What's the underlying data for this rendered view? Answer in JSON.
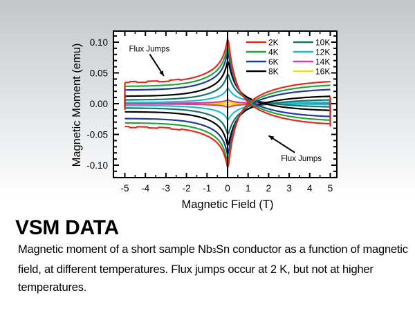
{
  "page": {
    "title": "VSM DATA",
    "caption_pre": "Magnetic moment of a short sample Nb",
    "caption_sub": "3",
    "caption_post": "Sn conductor as a function of magnetic field, at different temperatures. Flux jumps occur at 2 K, but not at higher temperatures."
  },
  "chart_data": {
    "type": "line",
    "title": "",
    "xlabel": "Magnetic Field (T)",
    "ylabel": "Magnetic Moment (emu)",
    "xlim": [
      -5.5,
      5.3
    ],
    "ylim": [
      -0.122,
      0.118
    ],
    "xticks": [
      "-5",
      "-4",
      "-3",
      "-2",
      "-1",
      "0",
      "1",
      "2",
      "3",
      "4",
      "5"
    ],
    "yticks": [
      "0.10",
      "0.05",
      "0.00",
      "-0.05",
      "-0.10"
    ],
    "grid": false,
    "legend_position": "upper right",
    "annotations": [
      {
        "text": "Flux Jumps",
        "xy": [
          -3.1,
          0.045
        ],
        "text_pos": [
          -4.8,
          0.085
        ]
      },
      {
        "text": "Flux Jumps",
        "xy": [
          2.0,
          -0.052
        ],
        "text_pos": [
          2.6,
          -0.093
        ]
      }
    ],
    "series": [
      {
        "name": "2K",
        "color": "#e8281e",
        "upper_peak": 0.109,
        "upper_end": 0.034,
        "lower_peak": -0.108,
        "lower_end": -0.037,
        "flux_jumps": true
      },
      {
        "name": "4K",
        "color": "#1fa83a",
        "upper_peak": 0.098,
        "upper_end": 0.028,
        "lower_peak": -0.1,
        "lower_end": -0.031
      },
      {
        "name": "6K",
        "color": "#1f3a9a",
        "upper_peak": 0.087,
        "upper_end": 0.022,
        "lower_peak": -0.086,
        "lower_end": -0.024
      },
      {
        "name": "8K",
        "color": "#000000",
        "upper_peak": 0.072,
        "upper_end": 0.012,
        "lower_peak": -0.071,
        "lower_end": -0.013
      },
      {
        "name": "10K",
        "color": "#14766e",
        "upper_peak": 0.05,
        "upper_end": 0.006,
        "lower_peak": -0.052,
        "lower_end": -0.007
      },
      {
        "name": "12K",
        "color": "#21bcd0",
        "upper_peak": 0.026,
        "upper_end": 0.002,
        "lower_peak": -0.027,
        "lower_end": -0.003
      },
      {
        "name": "14K",
        "color": "#d63b9e",
        "upper_peak": 0.006,
        "upper_end": 0.0005,
        "lower_peak": -0.006,
        "lower_end": -0.0005
      },
      {
        "name": "16K",
        "color": "#f2e200",
        "upper_peak": 0.002,
        "upper_end": 0.0,
        "lower_peak": -0.002,
        "lower_end": 0.0
      }
    ]
  }
}
